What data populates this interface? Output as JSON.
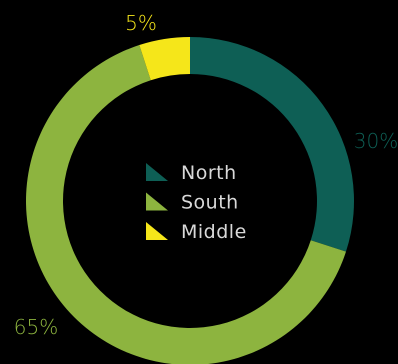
{
  "chart_data": {
    "type": "pie",
    "style": "donut",
    "categories": [
      "North",
      "South",
      "Middle"
    ],
    "values": [
      30,
      65,
      5
    ],
    "value_labels": [
      "30%",
      "65%",
      "5%"
    ],
    "colors": [
      "#0e5f55",
      "#8db43f",
      "#f5e61a"
    ],
    "legend": {
      "placement": "center",
      "entries": [
        "North",
        "South",
        "Middle"
      ]
    },
    "title": ""
  }
}
